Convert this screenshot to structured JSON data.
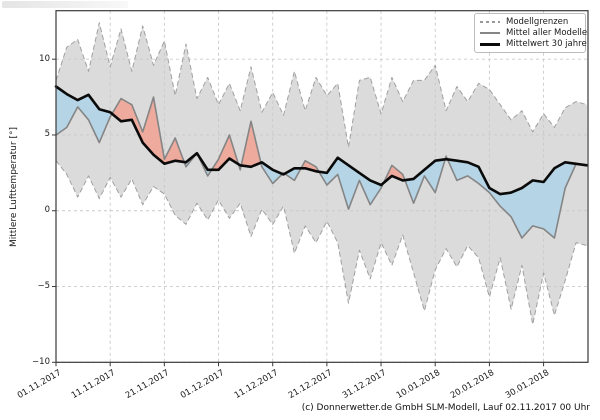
{
  "y_axis": {
    "label": "Mittlere Lufttemperatur [°]",
    "tick_labels": [
      "10",
      "5",
      "0",
      "−5",
      "−10"
    ],
    "tick_values": [
      10,
      5,
      0,
      -5,
      -10
    ]
  },
  "x_axis": {
    "tick_labels": [
      "01.11.2017",
      "11.11.2017",
      "21.11.2017",
      "01.12.2017",
      "11.12.2017",
      "21.12.2017",
      "31.12.2017",
      "10.01.2018",
      "20.01.2018",
      "30.01.2018"
    ],
    "tick_days": [
      0,
      10,
      20,
      30,
      40,
      50,
      60,
      70,
      80,
      90
    ]
  },
  "legend": {
    "items": [
      {
        "label": "Modellgrenzen",
        "style": "dashed-gray"
      },
      {
        "label": "Mittel aller Modelle",
        "style": "solid-gray"
      },
      {
        "label": "Mittelwert 30 jahre",
        "style": "solid-black-thick"
      }
    ]
  },
  "footer": {
    "credit": "(c) Donnerwetter.de GmbH SLM-Modell, Lauf 02.11.2017 00 Uhr"
  },
  "colors": {
    "band": "#dbdbdb",
    "band_edge": "#a0a0a0",
    "grid": "#c9c9c9",
    "model_mean": "#858585",
    "mean30": "#0a0a0a",
    "warmer": "#edaa9d",
    "colder": "#b5d4e6",
    "spine": "#3a3a3a"
  },
  "chart_data": {
    "type": "line",
    "title": "",
    "x_unit": "days since 01.11.2017",
    "x": [
      0,
      2,
      4,
      6,
      8,
      10,
      12,
      14,
      16,
      18,
      20,
      22,
      24,
      26,
      28,
      30,
      32,
      34,
      36,
      38,
      40,
      42,
      44,
      46,
      48,
      50,
      52,
      54,
      56,
      58,
      60,
      62,
      64,
      66,
      68,
      70,
      72,
      74,
      76,
      78,
      80,
      82,
      84,
      86,
      88,
      90,
      92,
      94,
      96,
      98
    ],
    "series": [
      {
        "name": "Modellgrenzen (obere Grenze)",
        "style": "dashed",
        "values": [
          8.6,
          10.8,
          11.3,
          9.2,
          12.4,
          9.5,
          12.0,
          9.2,
          12.2,
          9.6,
          11.2,
          7.6,
          11.0,
          7.4,
          8.8,
          7.0,
          8.4,
          6.6,
          9.5,
          6.5,
          7.8,
          6.3,
          9.2,
          6.6,
          8.8,
          7.6,
          8.4,
          4.2,
          8.6,
          8.8,
          6.4,
          8.8,
          7.2,
          8.6,
          8.6,
          9.6,
          6.6,
          8.2,
          7.2,
          8.4,
          8.0,
          7.0,
          6.0,
          6.6,
          5.2,
          6.4,
          5.5,
          6.8,
          7.2,
          7.0
        ]
      },
      {
        "name": "Modellgrenzen (untere Grenze)",
        "style": "dashed",
        "values": [
          3.3,
          2.4,
          0.9,
          2.3,
          0.8,
          2.2,
          0.9,
          2.1,
          0.4,
          1.6,
          1.1,
          -0.3,
          -0.9,
          0.5,
          -0.6,
          0.7,
          -0.5,
          0.5,
          -1.7,
          0.1,
          -0.9,
          0.3,
          -2.8,
          -1.0,
          -2.1,
          -0.7,
          -2.1,
          -6.1,
          -2.6,
          -4.5,
          -2.1,
          -3.6,
          -1.6,
          -4.1,
          -6.6,
          -3.9,
          -2.5,
          -3.7,
          -2.3,
          -3.1,
          -5.7,
          -3.1,
          -6.5,
          -3.6,
          -7.5,
          -4.1,
          -6.9,
          -4.6,
          -2.1,
          -2.3
        ]
      },
      {
        "name": "Mittel aller Modelle",
        "style": "solid-gray",
        "values": [
          5.0,
          5.5,
          6.85,
          6.0,
          4.5,
          6.2,
          7.4,
          7.0,
          5.2,
          7.5,
          3.4,
          4.8,
          2.9,
          3.8,
          2.3,
          3.4,
          5.0,
          2.7,
          5.9,
          2.9,
          1.8,
          2.5,
          2.0,
          3.3,
          2.9,
          1.7,
          2.4,
          0.1,
          2.0,
          0.4,
          1.5,
          3.0,
          2.4,
          0.5,
          2.3,
          1.2,
          3.6,
          2.0,
          2.3,
          1.8,
          1.2,
          0.3,
          -0.4,
          -1.8,
          -1.0,
          -1.2,
          -1.8,
          1.5,
          3.1,
          3.0
        ]
      },
      {
        "name": "Mittelwert 30 jahre",
        "style": "solid-black-thick",
        "values": [
          8.2,
          7.7,
          7.3,
          7.65,
          6.7,
          6.5,
          5.9,
          6.0,
          4.5,
          3.7,
          3.1,
          3.3,
          3.2,
          3.8,
          2.7,
          2.7,
          3.45,
          3.0,
          2.9,
          3.2,
          2.7,
          2.4,
          2.8,
          2.8,
          2.6,
          2.5,
          3.5,
          3.0,
          2.5,
          2.0,
          1.7,
          2.3,
          2.0,
          2.1,
          2.7,
          3.3,
          3.4,
          3.3,
          3.2,
          2.9,
          1.5,
          1.1,
          1.2,
          1.5,
          2.0,
          1.9,
          2.8,
          3.2,
          3.1,
          3.0
        ]
      }
    ],
    "fills": [
      {
        "between": [
          "Modellgrenzen (obere Grenze)",
          "Modellgrenzen (untere Grenze)"
        ],
        "color_key": "band"
      },
      {
        "between": [
          "Mittel aller Modelle",
          "Mittelwert 30 jahre"
        ],
        "above_color_key": "warmer",
        "below_color_key": "colder"
      }
    ],
    "ylim": [
      -10,
      13.2
    ],
    "xlim": [
      0,
      98.2
    ],
    "grid": "dashed, both axes",
    "legend_position": "upper right"
  }
}
